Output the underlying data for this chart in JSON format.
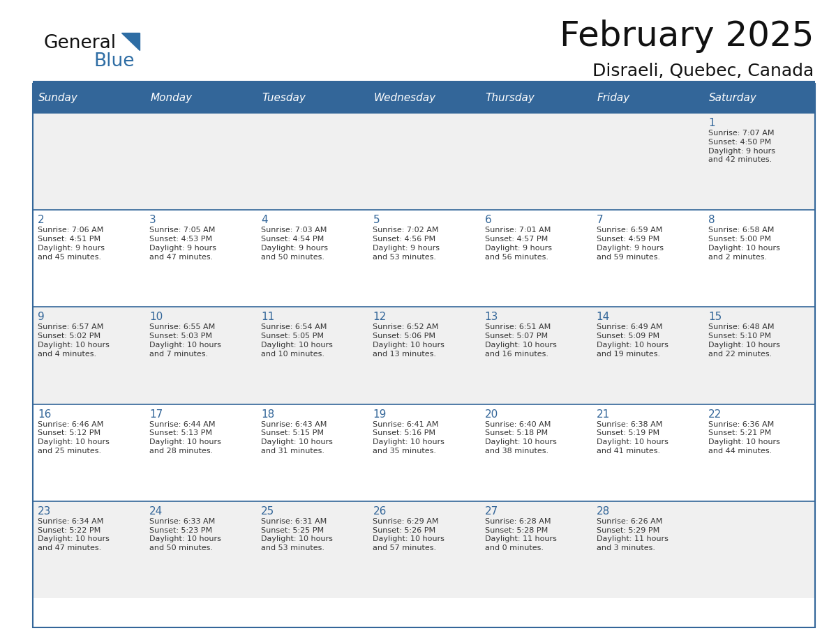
{
  "title": "February 2025",
  "subtitle": "Disraeli, Quebec, Canada",
  "header_bg": "#336699",
  "header_text_color": "#FFFFFF",
  "cell_bg_light": "#F0F0F0",
  "cell_bg_white": "#FFFFFF",
  "day_number_color": "#336699",
  "info_text_color": "#333333",
  "border_color": "#336699",
  "separator_color": "#336699",
  "days_of_week": [
    "Sunday",
    "Monday",
    "Tuesday",
    "Wednesday",
    "Thursday",
    "Friday",
    "Saturday"
  ],
  "weeks": [
    [
      {
        "day": null,
        "info": null
      },
      {
        "day": null,
        "info": null
      },
      {
        "day": null,
        "info": null
      },
      {
        "day": null,
        "info": null
      },
      {
        "day": null,
        "info": null
      },
      {
        "day": null,
        "info": null
      },
      {
        "day": 1,
        "info": "Sunrise: 7:07 AM\nSunset: 4:50 PM\nDaylight: 9 hours\nand 42 minutes."
      }
    ],
    [
      {
        "day": 2,
        "info": "Sunrise: 7:06 AM\nSunset: 4:51 PM\nDaylight: 9 hours\nand 45 minutes."
      },
      {
        "day": 3,
        "info": "Sunrise: 7:05 AM\nSunset: 4:53 PM\nDaylight: 9 hours\nand 47 minutes."
      },
      {
        "day": 4,
        "info": "Sunrise: 7:03 AM\nSunset: 4:54 PM\nDaylight: 9 hours\nand 50 minutes."
      },
      {
        "day": 5,
        "info": "Sunrise: 7:02 AM\nSunset: 4:56 PM\nDaylight: 9 hours\nand 53 minutes."
      },
      {
        "day": 6,
        "info": "Sunrise: 7:01 AM\nSunset: 4:57 PM\nDaylight: 9 hours\nand 56 minutes."
      },
      {
        "day": 7,
        "info": "Sunrise: 6:59 AM\nSunset: 4:59 PM\nDaylight: 9 hours\nand 59 minutes."
      },
      {
        "day": 8,
        "info": "Sunrise: 6:58 AM\nSunset: 5:00 PM\nDaylight: 10 hours\nand 2 minutes."
      }
    ],
    [
      {
        "day": 9,
        "info": "Sunrise: 6:57 AM\nSunset: 5:02 PM\nDaylight: 10 hours\nand 4 minutes."
      },
      {
        "day": 10,
        "info": "Sunrise: 6:55 AM\nSunset: 5:03 PM\nDaylight: 10 hours\nand 7 minutes."
      },
      {
        "day": 11,
        "info": "Sunrise: 6:54 AM\nSunset: 5:05 PM\nDaylight: 10 hours\nand 10 minutes."
      },
      {
        "day": 12,
        "info": "Sunrise: 6:52 AM\nSunset: 5:06 PM\nDaylight: 10 hours\nand 13 minutes."
      },
      {
        "day": 13,
        "info": "Sunrise: 6:51 AM\nSunset: 5:07 PM\nDaylight: 10 hours\nand 16 minutes."
      },
      {
        "day": 14,
        "info": "Sunrise: 6:49 AM\nSunset: 5:09 PM\nDaylight: 10 hours\nand 19 minutes."
      },
      {
        "day": 15,
        "info": "Sunrise: 6:48 AM\nSunset: 5:10 PM\nDaylight: 10 hours\nand 22 minutes."
      }
    ],
    [
      {
        "day": 16,
        "info": "Sunrise: 6:46 AM\nSunset: 5:12 PM\nDaylight: 10 hours\nand 25 minutes."
      },
      {
        "day": 17,
        "info": "Sunrise: 6:44 AM\nSunset: 5:13 PM\nDaylight: 10 hours\nand 28 minutes."
      },
      {
        "day": 18,
        "info": "Sunrise: 6:43 AM\nSunset: 5:15 PM\nDaylight: 10 hours\nand 31 minutes."
      },
      {
        "day": 19,
        "info": "Sunrise: 6:41 AM\nSunset: 5:16 PM\nDaylight: 10 hours\nand 35 minutes."
      },
      {
        "day": 20,
        "info": "Sunrise: 6:40 AM\nSunset: 5:18 PM\nDaylight: 10 hours\nand 38 minutes."
      },
      {
        "day": 21,
        "info": "Sunrise: 6:38 AM\nSunset: 5:19 PM\nDaylight: 10 hours\nand 41 minutes."
      },
      {
        "day": 22,
        "info": "Sunrise: 6:36 AM\nSunset: 5:21 PM\nDaylight: 10 hours\nand 44 minutes."
      }
    ],
    [
      {
        "day": 23,
        "info": "Sunrise: 6:34 AM\nSunset: 5:22 PM\nDaylight: 10 hours\nand 47 minutes."
      },
      {
        "day": 24,
        "info": "Sunrise: 6:33 AM\nSunset: 5:23 PM\nDaylight: 10 hours\nand 50 minutes."
      },
      {
        "day": 25,
        "info": "Sunrise: 6:31 AM\nSunset: 5:25 PM\nDaylight: 10 hours\nand 53 minutes."
      },
      {
        "day": 26,
        "info": "Sunrise: 6:29 AM\nSunset: 5:26 PM\nDaylight: 10 hours\nand 57 minutes."
      },
      {
        "day": 27,
        "info": "Sunrise: 6:28 AM\nSunset: 5:28 PM\nDaylight: 11 hours\nand 0 minutes."
      },
      {
        "day": 28,
        "info": "Sunrise: 6:26 AM\nSunset: 5:29 PM\nDaylight: 11 hours\nand 3 minutes."
      },
      {
        "day": null,
        "info": null
      }
    ]
  ],
  "logo_text_general": "General",
  "logo_text_blue": "Blue",
  "logo_color_general": "#111111",
  "logo_color_blue": "#2E6DA4",
  "logo_triangle_color": "#2E6DA4",
  "title_fontsize": 36,
  "subtitle_fontsize": 18,
  "header_fontsize": 11,
  "day_num_fontsize": 11,
  "info_fontsize": 8
}
